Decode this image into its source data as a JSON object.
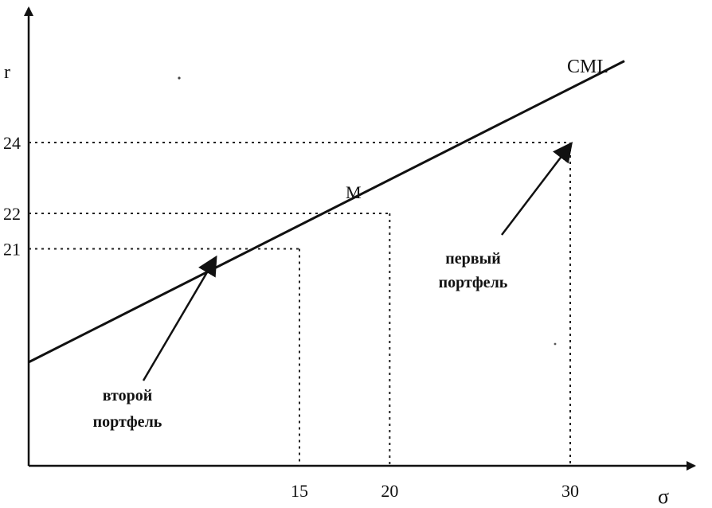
{
  "chart_data": {
    "type": "line",
    "title": "",
    "xlabel": "σ",
    "ylabel": "r",
    "series": [
      {
        "name": "CML",
        "x": [
          0,
          33
        ],
        "y": [
          17.8,
          26.3
        ]
      }
    ],
    "points": [
      {
        "label": "M",
        "x": 20,
        "y": 22
      },
      {
        "label": "первый портфель",
        "x": 30,
        "y": 24
      },
      {
        "label": "второй портфель",
        "x": 15,
        "y": 21
      }
    ],
    "xticks": [
      15,
      20,
      30
    ],
    "yticks": [
      21,
      22,
      24
    ],
    "grid": false,
    "dashed_guides": true
  },
  "labels": {
    "cml": "CML",
    "m": "M",
    "first_line1": "первый",
    "first_line2": "портфель",
    "second_line1": "второй",
    "second_line2": "портфель"
  }
}
